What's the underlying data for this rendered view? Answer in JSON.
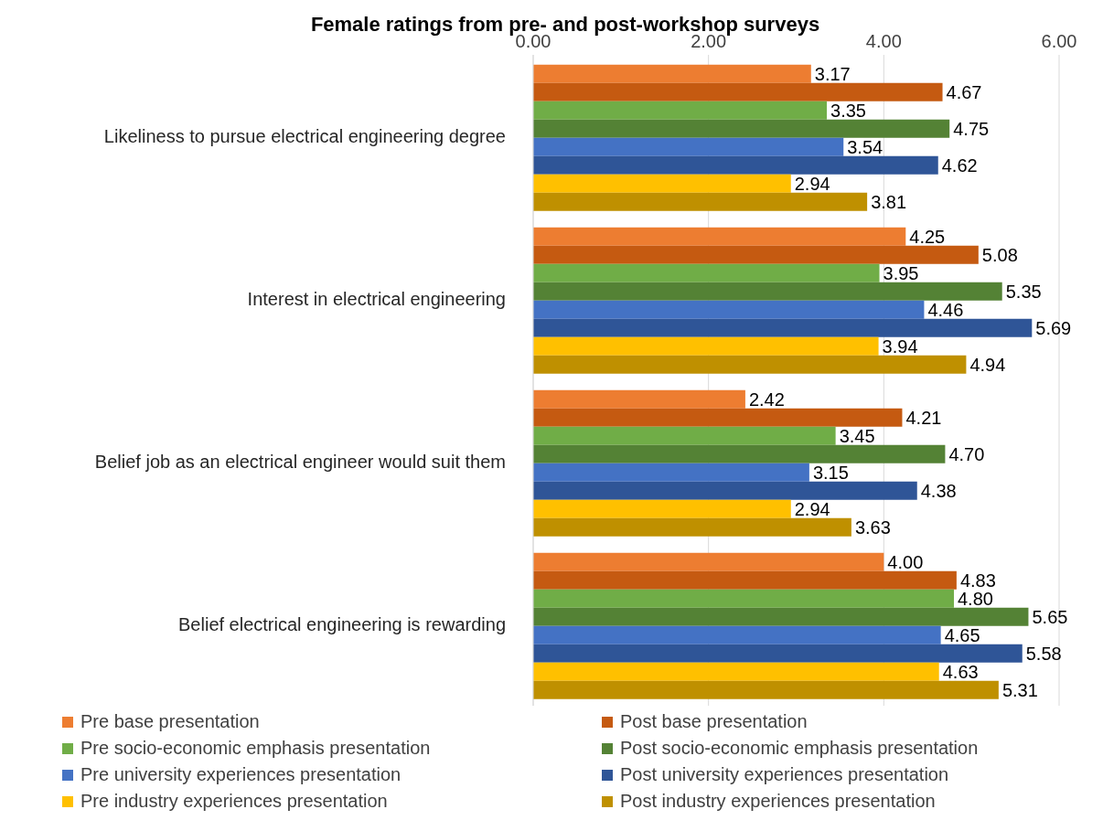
{
  "chart_data": {
    "type": "bar",
    "orientation": "horizontal",
    "title": "Female ratings from pre- and post-workshop surveys",
    "categories": [
      "Likeliness to pursue electrical engineering degree",
      "Interest in electrical engineering",
      "Belief job as an electrical engineer would suit them",
      "Belief electrical engineering is rewarding"
    ],
    "series": [
      {
        "name": "Pre base presentation",
        "color": "#ed7d31",
        "values": [
          3.17,
          4.25,
          2.42,
          4.0
        ],
        "value_labels": [
          "3.17",
          "4.25",
          "2.42",
          "4.00"
        ]
      },
      {
        "name": "Post base presentation",
        "color": "#c55a11",
        "values": [
          4.67,
          5.08,
          4.21,
          4.83
        ],
        "value_labels": [
          "4.67",
          "5.08",
          "4.21",
          "4.83"
        ]
      },
      {
        "name": "Pre socio-economic emphasis presentation",
        "color": "#70ad47",
        "values": [
          3.35,
          3.95,
          3.45,
          4.8
        ],
        "value_labels": [
          "3.35",
          "3.95",
          "3.45",
          "4.80"
        ]
      },
      {
        "name": "Post socio-economic emphasis presentation",
        "color": "#548235",
        "values": [
          4.75,
          5.35,
          4.7,
          5.65
        ],
        "value_labels": [
          "4.75",
          "5.35",
          "4.70",
          "5.65"
        ]
      },
      {
        "name": "Pre university experiences presentation",
        "color": "#4472c4",
        "values": [
          3.54,
          4.46,
          3.15,
          4.65
        ],
        "value_labels": [
          "3.54",
          "4.46",
          "3.15",
          "4.65"
        ]
      },
      {
        "name": "Post university experiences presentation",
        "color": "#2f5597",
        "values": [
          4.62,
          5.69,
          4.38,
          5.58
        ],
        "value_labels": [
          "4.62",
          "5.69",
          "4.38",
          "5.58"
        ]
      },
      {
        "name": "Pre industry experiences presentation",
        "color": "#ffc000",
        "values": [
          2.94,
          3.94,
          2.94,
          4.63
        ],
        "value_labels": [
          "2.94",
          "3.94",
          "2.94",
          "4.63"
        ]
      },
      {
        "name": "Post industry experiences presentation",
        "color": "#bf9000",
        "values": [
          3.81,
          4.94,
          3.63,
          5.31
        ],
        "value_labels": [
          "3.81",
          "4.94",
          "3.63",
          "5.31"
        ]
      }
    ],
    "xlim": [
      0,
      6
    ],
    "xticks": [
      {
        "value": 0,
        "label": "0.00"
      },
      {
        "value": 2,
        "label": "2.00"
      },
      {
        "value": 4,
        "label": "4.00"
      },
      {
        "value": 6,
        "label": "6.00"
      }
    ],
    "grid": "x",
    "legend": "bottom"
  }
}
